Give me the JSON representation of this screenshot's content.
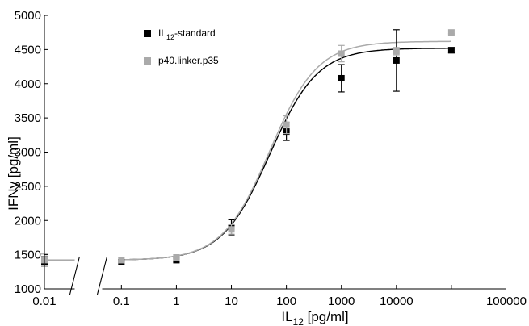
{
  "chart_data": {
    "type": "scatter",
    "title": "",
    "xlabel": {
      "main": "IL",
      "sub": "12",
      "rest": " [pg/ml]"
    },
    "ylabel": "IFNy [pg/ml]",
    "x_scale": "log",
    "xlim": [
      0.01,
      100000
    ],
    "ylim": [
      1000,
      5000
    ],
    "x_break": "between 0.01 and 0.1",
    "grid": false,
    "legend_position": "top-left",
    "x_ticks": [
      0.01,
      0.1,
      1,
      10,
      100,
      1000,
      10000,
      100000
    ],
    "x_tick_labels": [
      "0.01",
      "0.1",
      "1",
      "10",
      "100",
      "1000",
      "10000",
      "100000"
    ],
    "y_ticks": [
      1000,
      1500,
      2000,
      2500,
      3000,
      3500,
      4000,
      4500,
      5000
    ],
    "y_tick_labels": [
      "1000",
      "1500",
      "2000",
      "2500",
      "3000",
      "3500",
      "4000",
      "4500",
      "5000"
    ],
    "series": [
      {
        "name": {
          "main": "IL",
          "sub": "12",
          "rest": "-standard"
        },
        "color": "#000000",
        "x": [
          0.01,
          0.1,
          1,
          10,
          100,
          1000,
          10000,
          100000
        ],
        "y": [
          1400,
          1390,
          1420,
          1900,
          3300,
          4080,
          4340,
          4490
        ],
        "err": [
          70,
          40,
          30,
          110,
          130,
          200,
          450,
          40
        ],
        "fit": {
          "bottom": 1420,
          "top": 4520,
          "ec50": 50,
          "hill": 1.0
        }
      },
      {
        "name": {
          "main": "p40.linker.p35"
        },
        "color": "#aaaaaa",
        "x": [
          0.01,
          0.1,
          1,
          10,
          100,
          1000,
          10000,
          100000
        ],
        "y": [
          1420,
          1420,
          1460,
          1870,
          3400,
          4440,
          4470,
          4750
        ],
        "err": [
          90,
          40,
          40,
          70,
          130,
          120,
          60,
          20
        ],
        "fit": {
          "bottom": 1420,
          "top": 4620,
          "ec50": 50,
          "hill": 1.0
        }
      }
    ]
  }
}
